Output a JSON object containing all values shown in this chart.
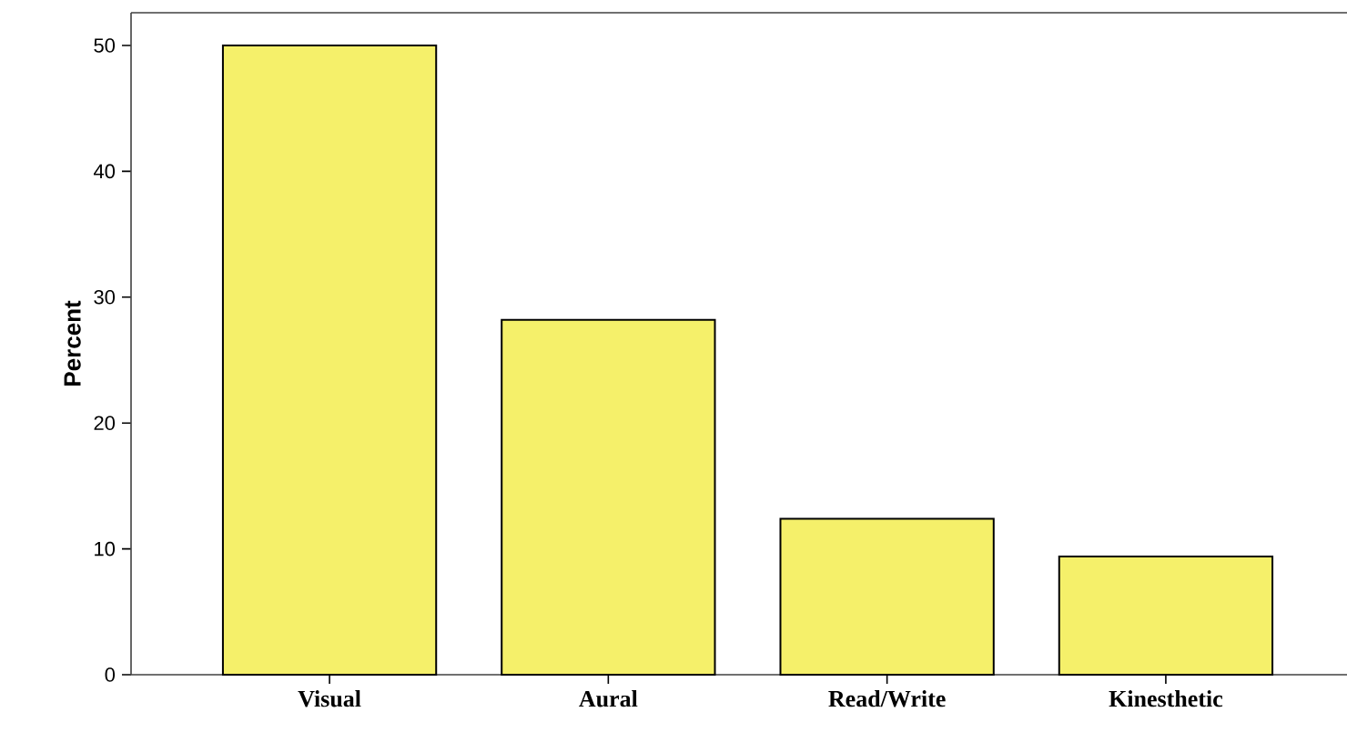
{
  "chart_data": {
    "type": "bar",
    "ylabel": "Percent",
    "categories": [
      "Visual",
      "Aural",
      "Read/Write",
      "Kinesthetic"
    ],
    "values": [
      50,
      28.2,
      12.4,
      9.4
    ],
    "color": "#f5f06a",
    "ylim": [
      0,
      52.6
    ],
    "yticks": [
      0,
      10,
      20,
      30,
      40,
      50
    ],
    "grid": false
  }
}
